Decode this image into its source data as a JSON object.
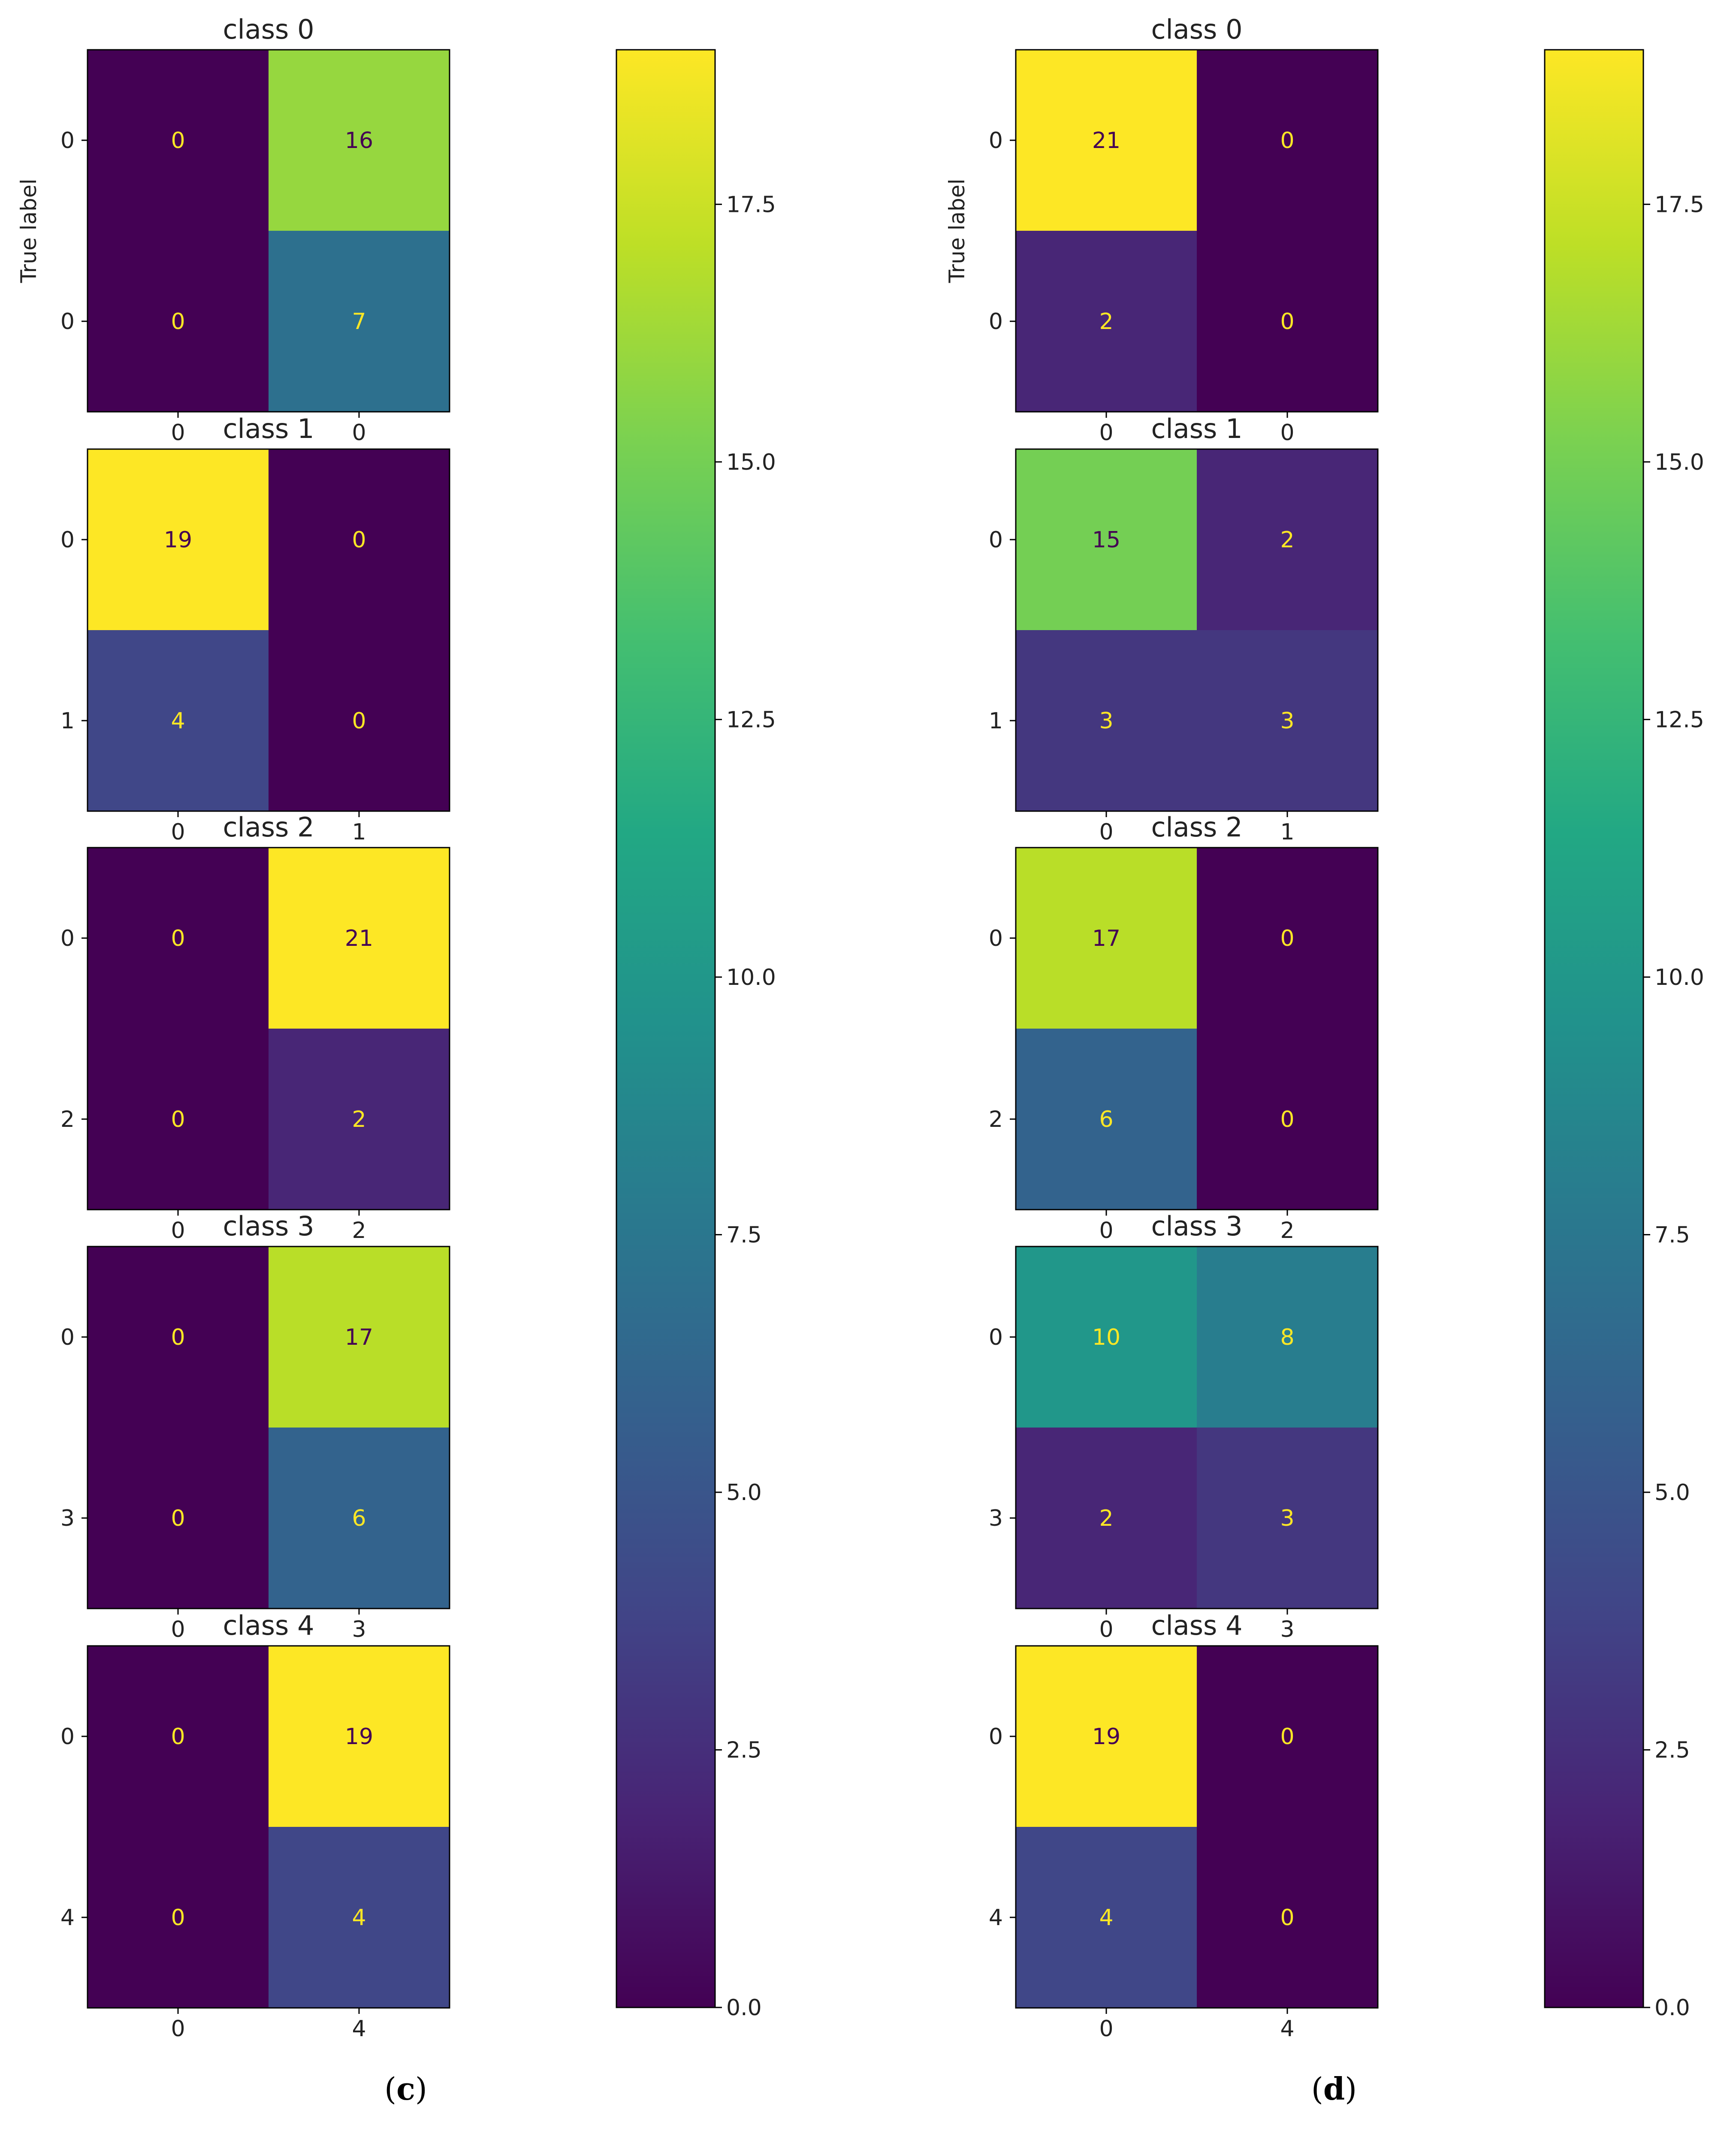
{
  "chart_data": [
    {
      "type": "heatmap",
      "panel_label": {
        "open": "(",
        "letter": "c",
        "close": ")"
      },
      "ylabel": "True label",
      "colorbar": {
        "ticks": [
          "0.0",
          "2.5",
          "5.0",
          "7.5",
          "10.0",
          "12.5",
          "15.0",
          "17.5"
        ],
        "range": [
          0,
          19
        ]
      },
      "matrices": [
        {
          "title": "class 0",
          "row_labels": [
            "0",
            "0"
          ],
          "col_labels": [
            "0",
            "0"
          ],
          "values": [
            [
              0,
              16
            ],
            [
              0,
              7
            ]
          ]
        },
        {
          "title": "class 1",
          "row_labels": [
            "0",
            "1"
          ],
          "col_labels": [
            "0",
            "1"
          ],
          "values": [
            [
              19,
              0
            ],
            [
              4,
              0
            ]
          ]
        },
        {
          "title": "class 2",
          "row_labels": [
            "0",
            "2"
          ],
          "col_labels": [
            "0",
            "2"
          ],
          "values": [
            [
              0,
              21
            ],
            [
              0,
              2
            ]
          ]
        },
        {
          "title": "class 3",
          "row_labels": [
            "0",
            "3"
          ],
          "col_labels": [
            "0",
            "3"
          ],
          "values": [
            [
              0,
              17
            ],
            [
              0,
              6
            ]
          ]
        },
        {
          "title": "class 4",
          "row_labels": [
            "0",
            "4"
          ],
          "col_labels": [
            "0",
            "4"
          ],
          "values": [
            [
              0,
              19
            ],
            [
              0,
              4
            ]
          ]
        }
      ]
    },
    {
      "type": "heatmap",
      "panel_label": {
        "open": "(",
        "letter": "d",
        "close": ")"
      },
      "ylabel": "True label",
      "colorbar": {
        "ticks": [
          "0.0",
          "2.5",
          "5.0",
          "7.5",
          "10.0",
          "12.5",
          "15.0",
          "17.5"
        ],
        "range": [
          0,
          19
        ]
      },
      "matrices": [
        {
          "title": "class 0",
          "row_labels": [
            "0",
            "0"
          ],
          "col_labels": [
            "0",
            "0"
          ],
          "values": [
            [
              21,
              0
            ],
            [
              2,
              0
            ]
          ]
        },
        {
          "title": "class 1",
          "row_labels": [
            "0",
            "1"
          ],
          "col_labels": [
            "0",
            "1"
          ],
          "values": [
            [
              15,
              2
            ],
            [
              3,
              3
            ]
          ]
        },
        {
          "title": "class 2",
          "row_labels": [
            "0",
            "2"
          ],
          "col_labels": [
            "0",
            "2"
          ],
          "values": [
            [
              17,
              0
            ],
            [
              6,
              0
            ]
          ]
        },
        {
          "title": "class 3",
          "row_labels": [
            "0",
            "3"
          ],
          "col_labels": [
            "0",
            "3"
          ],
          "values": [
            [
              10,
              8
            ],
            [
              2,
              3
            ]
          ]
        },
        {
          "title": "class 4",
          "row_labels": [
            "0",
            "4"
          ],
          "col_labels": [
            "0",
            "4"
          ],
          "values": [
            [
              19,
              0
            ],
            [
              4,
              0
            ]
          ]
        }
      ]
    }
  ]
}
